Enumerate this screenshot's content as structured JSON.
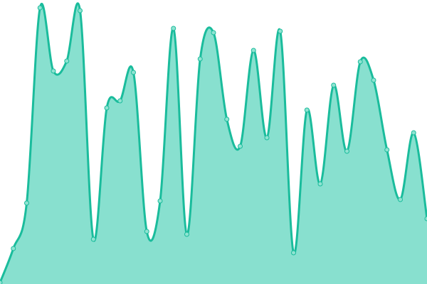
{
  "chart_data": {
    "type": "area",
    "title": "",
    "xlabel": "",
    "ylabel": "",
    "x": [
      0,
      1,
      2,
      3,
      4,
      5,
      6,
      7,
      8,
      9,
      10,
      11,
      12,
      13,
      14,
      15,
      16,
      17,
      18,
      19,
      20,
      21,
      22,
      23,
      24,
      25,
      26,
      27,
      28,
      29,
      30,
      31,
      32
    ],
    "values": [
      2,
      50,
      114,
      389,
      300,
      314,
      385,
      63,
      248,
      258,
      298,
      74,
      117,
      360,
      70,
      317,
      354,
      232,
      194,
      329,
      206,
      356,
      44,
      245,
      141,
      280,
      187,
      313,
      287,
      189,
      119,
      213,
      92
    ],
    "ylim": [
      0,
      400
    ],
    "grid": false,
    "axes_visible": false,
    "smooth": true,
    "markers": true,
    "colors": {
      "line": "#1abc9c",
      "fill": "#88e0cf",
      "marker_fill": "#8fe3d1"
    }
  }
}
